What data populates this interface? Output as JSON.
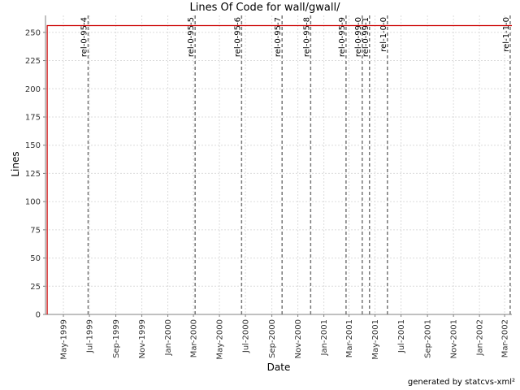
{
  "chart_data": {
    "type": "line",
    "title": "Lines Of Code for wall/gwall/",
    "xlabel": "Date",
    "ylabel": "Lines",
    "ylim": [
      0,
      265
    ],
    "xlim": [
      "1999-03-20",
      "2002-03-18"
    ],
    "yticks": [
      0,
      25,
      50,
      75,
      100,
      125,
      150,
      175,
      200,
      225,
      250
    ],
    "xticks": [
      "May-1999",
      "Jul-1999",
      "Sep-1999",
      "Nov-1999",
      "Jan-2000",
      "Mar-2000",
      "May-2000",
      "Jul-2000",
      "Sep-2000",
      "Nov-2000",
      "Jan-2001",
      "Mar-2001",
      "May-2001",
      "Jul-2001",
      "Sep-2001",
      "Nov-2001",
      "Jan-2002",
      "Mar-2002"
    ],
    "grid": true,
    "line_color": "#cc0000",
    "series": [
      {
        "x": [
          "1999-03-24",
          "1999-03-24",
          "2002-03-18"
        ],
        "y": [
          0,
          256,
          256
        ]
      }
    ],
    "annotations": [
      {
        "label": "rel-0-95-4",
        "date": "1999-06-28"
      },
      {
        "label": "rel-0-95-5",
        "date": "2000-03-05"
      },
      {
        "label": "rel-0-95-6",
        "date": "2000-06-22"
      },
      {
        "label": "rel-0-95-7",
        "date": "2000-09-25"
      },
      {
        "label": "rel-0-95-8",
        "date": "2000-12-01"
      },
      {
        "label": "rel-0-95-9",
        "date": "2001-02-22"
      },
      {
        "label": "rel-0-99-0",
        "date": "2001-04-01"
      },
      {
        "label": "rel-0-99-1",
        "date": "2001-04-18"
      },
      {
        "label": "rel-1-0-0",
        "date": "2001-05-30"
      },
      {
        "label": "rel-1-1-0",
        "date": "2002-03-14"
      }
    ]
  },
  "footer": "generated by statcvs-xml²"
}
